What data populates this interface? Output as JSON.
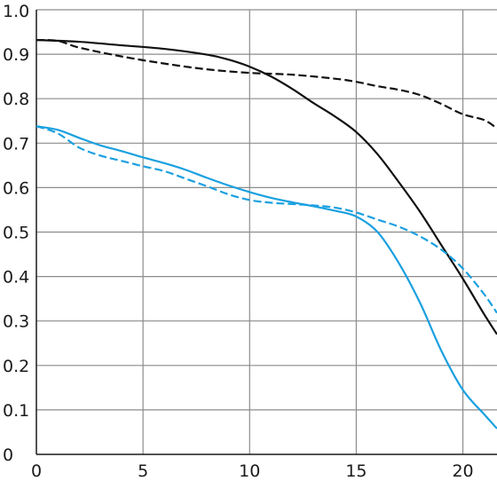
{
  "chart_data": {
    "type": "line",
    "x_ticks": [
      "0",
      "5",
      "10",
      "15",
      "20"
    ],
    "y_ticks": [
      "0",
      "0.1",
      "0.2",
      "0.3",
      "0.4",
      "0.5",
      "0.6",
      "0.7",
      "0.8",
      "0.9",
      "1.0"
    ],
    "xlim": [
      0,
      21.6
    ],
    "ylim": [
      0,
      1.0
    ],
    "grid": true,
    "series": [
      {
        "color": "#111111",
        "dash": "solid",
        "x": [
          0,
          2,
          4,
          6,
          8,
          9,
          10,
          11,
          12,
          13,
          14,
          15,
          16,
          17,
          18,
          19,
          20,
          21,
          21.6
        ],
        "y": [
          0.932,
          0.928,
          0.92,
          0.912,
          0.899,
          0.888,
          0.872,
          0.85,
          0.822,
          0.79,
          0.76,
          0.725,
          0.675,
          0.612,
          0.545,
          0.47,
          0.395,
          0.315,
          0.27
        ]
      },
      {
        "color": "#111111",
        "dash": "dashed",
        "x": [
          0,
          1,
          2,
          4,
          6,
          8,
          10,
          12,
          14,
          15,
          16,
          17,
          18,
          19,
          20,
          21,
          21.6
        ],
        "y": [
          0.932,
          0.93,
          0.915,
          0.895,
          0.879,
          0.866,
          0.858,
          0.854,
          0.845,
          0.838,
          0.828,
          0.82,
          0.808,
          0.788,
          0.765,
          0.752,
          0.733
        ]
      },
      {
        "color": "#1aa0e0",
        "dash": "solid",
        "x": [
          0,
          1,
          2,
          3,
          4,
          5,
          6,
          7,
          8,
          9,
          10,
          11,
          12,
          13,
          14,
          15,
          16,
          17,
          18,
          19,
          20,
          21,
          21.6
        ],
        "y": [
          0.738,
          0.73,
          0.712,
          0.695,
          0.682,
          0.668,
          0.655,
          0.64,
          0.622,
          0.605,
          0.59,
          0.577,
          0.567,
          0.558,
          0.548,
          0.535,
          0.5,
          0.43,
          0.34,
          0.232,
          0.145,
          0.09,
          0.058
        ]
      },
      {
        "color": "#1aa0e0",
        "dash": "dashed",
        "x": [
          0,
          1,
          2,
          3,
          4,
          5,
          6,
          7,
          8,
          9,
          10,
          11,
          12,
          13,
          14,
          15,
          16,
          17,
          18,
          19,
          20,
          21,
          21.6
        ],
        "y": [
          0.738,
          0.722,
          0.69,
          0.672,
          0.66,
          0.648,
          0.637,
          0.62,
          0.603,
          0.585,
          0.572,
          0.566,
          0.563,
          0.56,
          0.555,
          0.544,
          0.528,
          0.512,
          0.49,
          0.46,
          0.418,
          0.36,
          0.318
        ]
      }
    ]
  }
}
